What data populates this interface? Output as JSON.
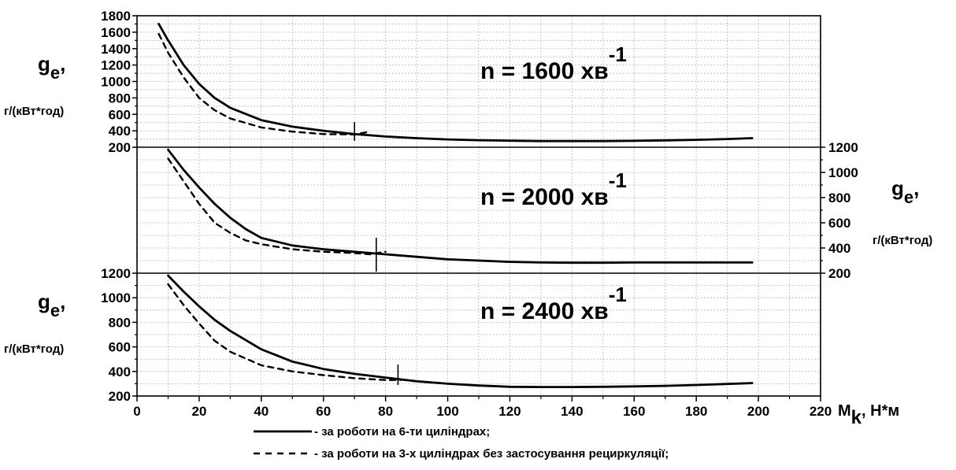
{
  "chart_data": [
    {
      "type": "line",
      "title_parts": {
        "prefix": "n = 1600 хв",
        "exponent": "-1"
      },
      "ylabel": {
        "symbol": "g",
        "subscript": "e",
        "suffix": ",",
        "unit": "г/(кВт*год)"
      },
      "ylabel_side": "left",
      "ylim": [
        200,
        1800
      ],
      "yticks": [
        200,
        400,
        600,
        800,
        1000,
        1200,
        1400,
        1600,
        1800
      ],
      "marker_x": 70,
      "series": [
        {
          "style": "solid",
          "x": [
            7,
            10,
            15,
            20,
            25,
            30,
            40,
            50,
            60,
            70,
            80,
            90,
            100,
            110,
            120,
            130,
            140,
            150,
            160,
            170,
            180,
            190,
            198
          ],
          "y": [
            1700,
            1500,
            1200,
            970,
            800,
            680,
            530,
            450,
            400,
            360,
            330,
            310,
            295,
            285,
            280,
            275,
            275,
            275,
            278,
            283,
            290,
            300,
            310
          ]
        },
        {
          "style": "dashed",
          "x": [
            7,
            10,
            15,
            20,
            25,
            30,
            40,
            50,
            60,
            70,
            75
          ],
          "y": [
            1580,
            1350,
            1050,
            800,
            650,
            550,
            440,
            390,
            360,
            355,
            390
          ]
        }
      ]
    },
    {
      "type": "line",
      "title_parts": {
        "prefix": "n = 2000 хв",
        "exponent": "-1"
      },
      "ylabel": {
        "symbol": "g",
        "subscript": "e",
        "suffix": ",",
        "unit": "г/(кВт*год)"
      },
      "ylabel_side": "right",
      "ylim": [
        200,
        1200
      ],
      "yticks": [
        200,
        400,
        600,
        800,
        1000,
        1200
      ],
      "marker_x": 77,
      "series": [
        {
          "style": "solid",
          "x": [
            10,
            15,
            20,
            25,
            30,
            35,
            40,
            50,
            60,
            70,
            80,
            90,
            100,
            110,
            120,
            130,
            140,
            150,
            160,
            170,
            180,
            190,
            198
          ],
          "y": [
            1180,
            1020,
            880,
            750,
            640,
            550,
            480,
            420,
            390,
            370,
            350,
            330,
            310,
            300,
            290,
            285,
            283,
            283,
            285,
            285,
            285,
            285,
            285
          ]
        },
        {
          "style": "dashed",
          "x": [
            10,
            15,
            20,
            25,
            30,
            35,
            40,
            50,
            60,
            70,
            75,
            80
          ],
          "y": [
            1110,
            930,
            750,
            600,
            520,
            460,
            430,
            390,
            370,
            360,
            350,
            370
          ]
        }
      ]
    },
    {
      "type": "line",
      "title_parts": {
        "prefix": "n = 2400 хв",
        "exponent": "-1"
      },
      "ylabel": {
        "symbol": "g",
        "subscript": "e",
        "suffix": ",",
        "unit": "г/(кВт*год)"
      },
      "ylabel_side": "left",
      "ylim": [
        200,
        1200
      ],
      "yticks": [
        200,
        400,
        600,
        800,
        1000,
        1200
      ],
      "marker_x": 84,
      "series": [
        {
          "style": "solid",
          "x": [
            10,
            15,
            20,
            25,
            30,
            40,
            50,
            60,
            70,
            80,
            90,
            100,
            110,
            120,
            130,
            140,
            150,
            160,
            170,
            180,
            190,
            198
          ],
          "y": [
            1180,
            1050,
            930,
            820,
            730,
            580,
            480,
            420,
            380,
            350,
            320,
            300,
            285,
            275,
            273,
            273,
            275,
            278,
            283,
            290,
            298,
            305
          ]
        },
        {
          "style": "dashed",
          "x": [
            10,
            15,
            20,
            25,
            30,
            40,
            50,
            60,
            70,
            80,
            85
          ],
          "y": [
            1110,
            940,
            790,
            650,
            560,
            450,
            400,
            370,
            345,
            330,
            330
          ]
        }
      ]
    }
  ],
  "x_axis": {
    "label_main": "M",
    "label_sub": "k",
    "label_unit": ", Н*м",
    "xlim": [
      0,
      220
    ],
    "ticks": [
      0,
      20,
      40,
      60,
      80,
      100,
      120,
      140,
      160,
      180,
      200,
      220
    ],
    "tick_labels": [
      "0",
      "20",
      "40",
      "60",
      "80",
      "100",
      "120",
      "140",
      "160",
      "180",
      "200",
      "220"
    ]
  },
  "grid": true,
  "legend": {
    "placement": "bottom",
    "items": [
      {
        "style": "solid",
        "label": "- за роботи на 6-ти циліндрах;"
      },
      {
        "style": "dashed",
        "label": "- за роботи на 3-х циліндрах без застосування рециркуляції;"
      }
    ]
  }
}
